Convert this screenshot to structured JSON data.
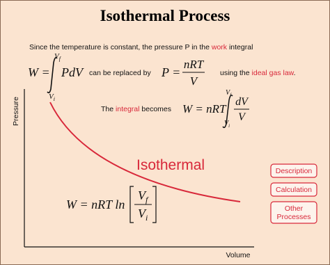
{
  "title": "Isothermal Process",
  "intro": {
    "parts": [
      "Since the temperature is constant, the pressure P in the ",
      "work",
      " integral"
    ]
  },
  "work_integral": {
    "lhs": "W =",
    "integrand": "PdV",
    "upper": "V",
    "upper_sub": "f",
    "lower": "V",
    "lower_sub": "i"
  },
  "replace_text": "can be replaced by",
  "ideal_gas": {
    "lhs": "P =",
    "numerator": "nRT",
    "denominator": "V"
  },
  "ideal_gas_text": {
    "parts": [
      "using the ",
      "ideal gas law",
      "."
    ]
  },
  "integral_text": {
    "parts": [
      "The ",
      "integral",
      " becomes"
    ]
  },
  "integral_result": {
    "lhs": "W = nRT",
    "upper": "V",
    "upper_sub": "f",
    "lower": "V",
    "lower_sub": "i",
    "numerator": "dV",
    "denominator": "V"
  },
  "graph": {
    "y_label": "Pressure",
    "x_label": "Volume",
    "curve_label": "Isothermal"
  },
  "final_formula": {
    "lhs": "W = nRT ln",
    "numerator": "V",
    "numerator_sub": "f",
    "denominator": "V",
    "denominator_sub": "i"
  },
  "buttons": [
    {
      "lines": [
        "Description"
      ]
    },
    {
      "lines": [
        "Calculation"
      ]
    },
    {
      "lines": [
        "Other",
        "Processes"
      ]
    }
  ]
}
